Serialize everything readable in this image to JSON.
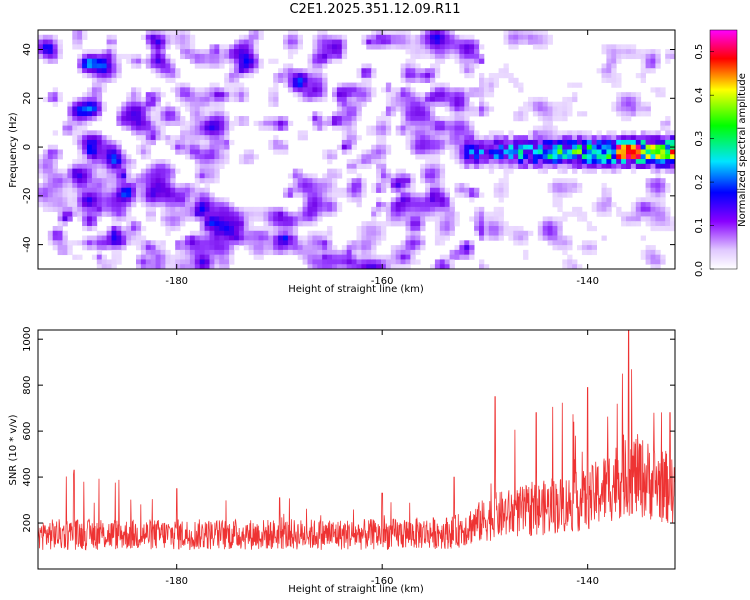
{
  "title": "C2E1.2025.351.12.09.R11",
  "chart_data": [
    {
      "type": "heatmap",
      "xlabel": "Height of straight line (km)",
      "ylabel": "Frequency (Hz)",
      "xlim": [
        -193.5,
        -131.5
      ],
      "ylim": [
        -50,
        48
      ],
      "xticks": [
        -180,
        -160,
        -140
      ],
      "yticks": [
        -40,
        -20,
        0,
        20,
        40
      ],
      "colorbar": {
        "label": "Normalized spectral amplitude",
        "range": [
          0,
          0.55
        ],
        "ticks": [
          "0.0",
          "0.1",
          "0.2",
          "0.3",
          "0.4",
          "0.5"
        ],
        "tick_values": [
          0,
          0.1,
          0.2,
          0.3,
          0.4,
          0.5
        ],
        "colors": [
          "#ffffff",
          "#8800ff",
          "#0000ff",
          "#00e5ff",
          "#00ff00",
          "#ffff00",
          "#ff0000",
          "#ff00ff"
        ]
      },
      "features": [
        {
          "description": "broadband noise",
          "x_range": [
            -193.5,
            -150
          ],
          "y_range": [
            -50,
            48
          ],
          "amplitude": 0.05
        },
        {
          "description": "signal band near 0 Hz",
          "x_range": [
            -152,
            -131.5
          ],
          "y_center": -2,
          "y_halfwidth": 6,
          "amplitude_peak": 0.52,
          "peak_x": -136
        }
      ]
    },
    {
      "type": "line",
      "xlabel": "Height of straight line (km)",
      "ylabel": "SNR (10 * v/v)",
      "xlim": [
        -193.5,
        -131.5
      ],
      "ylim": [
        0,
        1040
      ],
      "xticks": [
        -180,
        -160,
        -140
      ],
      "yticks": [
        200,
        400,
        600,
        800,
        1000
      ],
      "color": "#ee3333",
      "series_summary": [
        {
          "x": -190,
          "y_mean": 150,
          "y_max": 430
        },
        {
          "x": -180,
          "y_mean": 150,
          "y_max": 350
        },
        {
          "x": -170,
          "y_mean": 150,
          "y_max": 310
        },
        {
          "x": -160,
          "y_mean": 150,
          "y_max": 330
        },
        {
          "x": -153,
          "y_mean": 160,
          "y_max": 400
        },
        {
          "x": -149,
          "y_mean": 230,
          "y_max": 750
        },
        {
          "x": -145,
          "y_mean": 260,
          "y_max": 680
        },
        {
          "x": -140,
          "y_mean": 300,
          "y_max": 790
        },
        {
          "x": -136,
          "y_mean": 420,
          "y_max": 1040
        },
        {
          "x": -132,
          "y_mean": 350,
          "y_max": 680
        }
      ]
    }
  ]
}
